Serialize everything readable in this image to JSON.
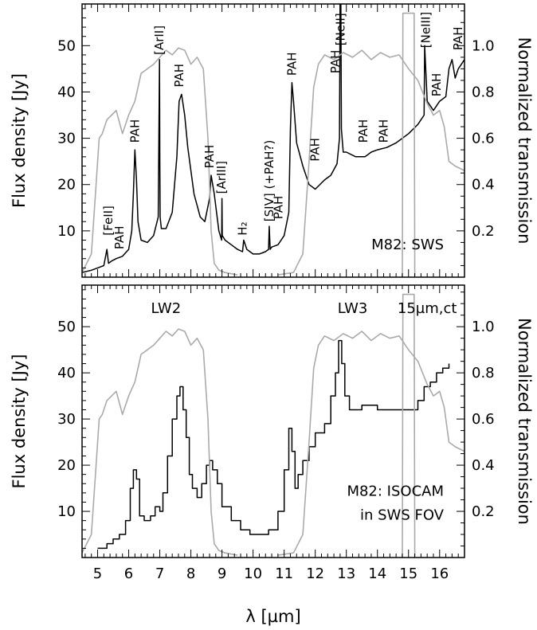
{
  "chart_data": [
    {
      "type": "line",
      "panel_label": "M82: SWS",
      "xlim": [
        4.5,
        16.8
      ],
      "ylim_left": [
        0,
        59
      ],
      "ylim_right": [
        0,
        1.18
      ],
      "x_ticks": [
        5,
        6,
        7,
        8,
        9,
        10,
        11,
        12,
        13,
        14,
        15,
        16
      ],
      "y_left_ticks": [
        10,
        20,
        30,
        40,
        50
      ],
      "y_right_ticks": [
        0.2,
        0.4,
        0.6,
        0.8,
        1.0
      ],
      "ylabel": "Flux density [Jy]",
      "ylabel_right": "Normalized transmission",
      "series": [
        {
          "role": "flux spectrum",
          "axis": "left",
          "color": "#000000",
          "x": [
            4.5,
            4.8,
            5.0,
            5.2,
            5.3,
            5.35,
            5.45,
            5.6,
            5.8,
            6.0,
            6.1,
            6.15,
            6.2,
            6.25,
            6.3,
            6.4,
            6.6,
            6.8,
            6.95,
            6.99,
            7.0,
            7.01,
            7.05,
            7.2,
            7.4,
            7.55,
            7.62,
            7.7,
            7.8,
            7.9,
            8.1,
            8.3,
            8.45,
            8.6,
            8.65,
            8.75,
            8.9,
            8.99,
            9.0,
            9.01,
            9.1,
            9.3,
            9.5,
            9.66,
            9.7,
            9.8,
            10.0,
            10.2,
            10.4,
            10.5,
            10.52,
            10.55,
            10.6,
            10.8,
            11.0,
            11.15,
            11.2,
            11.25,
            11.3,
            11.4,
            11.6,
            11.8,
            12.0,
            12.3,
            12.5,
            12.7,
            12.78,
            12.81,
            12.84,
            12.9,
            13.0,
            13.3,
            13.6,
            13.8,
            14.0,
            14.3,
            14.6,
            14.8,
            15.0,
            15.3,
            15.5,
            15.52,
            15.56,
            15.6,
            15.8,
            16.0,
            16.2,
            16.3,
            16.4,
            16.5,
            16.6,
            16.8
          ],
          "y": [
            1,
            1.5,
            2,
            2.5,
            6,
            3,
            3.5,
            4,
            4.5,
            6,
            10,
            18,
            27.5,
            21,
            12,
            8,
            7.5,
            9,
            13,
            47,
            25,
            13,
            10.5,
            10.5,
            14,
            26,
            38,
            39.5,
            35,
            28,
            18,
            13,
            12,
            17,
            22,
            18,
            10,
            8,
            17,
            9,
            8,
            7,
            6,
            5.5,
            8,
            6,
            5,
            5,
            5.5,
            6,
            11,
            6,
            6.5,
            7,
            9,
            14,
            32,
            42,
            38,
            29,
            24,
            20,
            19,
            21,
            22,
            24.5,
            30,
            80,
            32,
            27,
            27,
            26,
            26,
            27,
            27.5,
            28,
            29,
            30,
            31,
            33,
            35,
            50,
            44,
            38,
            36,
            38,
            39,
            45,
            47,
            43,
            45,
            47
          ]
        },
        {
          "role": "filter transmission LW2",
          "axis": "right",
          "color": "#aaaaaa",
          "x": [
            4.5,
            4.8,
            4.95,
            5.05,
            5.15,
            5.3,
            5.45,
            5.6,
            5.8,
            6.0,
            6.2,
            6.4,
            6.6,
            6.8,
            7.0,
            7.2,
            7.4,
            7.6,
            7.8,
            8.0,
            8.2,
            8.4,
            8.55,
            8.65,
            8.75,
            8.9,
            9.1,
            9.5
          ],
          "y": [
            0.02,
            0.1,
            0.4,
            0.6,
            0.62,
            0.68,
            0.7,
            0.72,
            0.62,
            0.7,
            0.76,
            0.88,
            0.9,
            0.92,
            0.95,
            0.98,
            0.96,
            0.99,
            0.98,
            0.92,
            0.95,
            0.9,
            0.6,
            0.2,
            0.06,
            0.03,
            0.02,
            0.01
          ]
        },
        {
          "role": "filter transmission LW3",
          "axis": "right",
          "color": "#aaaaaa",
          "x": [
            10.8,
            11.3,
            11.6,
            11.8,
            11.95,
            12.1,
            12.3,
            12.6,
            12.9,
            13.2,
            13.5,
            13.8,
            14.1,
            14.4,
            14.7,
            15.0,
            15.3,
            15.6,
            15.8,
            16.0,
            16.15,
            16.3,
            16.5,
            16.8
          ],
          "y": [
            0.01,
            0.02,
            0.1,
            0.5,
            0.82,
            0.92,
            0.96,
            0.94,
            0.97,
            0.95,
            0.98,
            0.94,
            0.97,
            0.95,
            0.96,
            0.9,
            0.85,
            0.75,
            0.7,
            0.72,
            0.65,
            0.5,
            0.48,
            0.46
          ]
        },
        {
          "role": "filter transmission 15µm ct",
          "axis": "right",
          "color": "#aaaaaa",
          "x": [
            14.8,
            14.82,
            15.18,
            15.2
          ],
          "y": [
            0,
            1.14,
            1.14,
            0
          ]
        }
      ],
      "annotations": [
        {
          "text": "[FeII]",
          "x": 5.35,
          "rotate": true,
          "boxed": true,
          "at_flux": 9
        },
        {
          "text": "PAH",
          "x": 5.7,
          "rotate": true,
          "at_flux": 6
        },
        {
          "text": "PAH",
          "x": 6.2,
          "rotate": true,
          "at_flux": 29
        },
        {
          "text": "[ArII]",
          "x": 6.98,
          "rotate": true,
          "boxed": true,
          "at_flux": 48
        },
        {
          "text": "PAH",
          "x": 7.62,
          "rotate": true,
          "at_flux": 41
        },
        {
          "text": "PAH",
          "x": 8.6,
          "rotate": true,
          "at_flux": 23.5
        },
        {
          "text": "[ArIII]",
          "x": 8.99,
          "rotate": true,
          "boxed": true,
          "at_flux": 18
        },
        {
          "text": "H₂",
          "x": 9.66,
          "rotate": true,
          "at_flux": 9
        },
        {
          "text": "[SIV] (+PAH?)",
          "x": 10.52,
          "rotate": true,
          "boxed": true,
          "at_flux": 12
        },
        {
          "text": "PAH",
          "x": 10.82,
          "rotate": true,
          "at_flux": 12.5
        },
        {
          "text": "PAH",
          "x": 11.25,
          "rotate": true,
          "at_flux": 43.5
        },
        {
          "text": "PAH",
          "x": 12.0,
          "rotate": true,
          "at_flux": 25
        },
        {
          "text": "PAH",
          "x": 12.65,
          "rotate": true,
          "at_flux": 44
        },
        {
          "text": "[NeII]",
          "x": 12.81,
          "rotate": true,
          "boxed": true,
          "at_flux": 50
        },
        {
          "text": "PAH",
          "x": 13.55,
          "rotate": true,
          "at_flux": 29
        },
        {
          "text": "PAH",
          "x": 14.2,
          "rotate": true,
          "at_flux": 29
        },
        {
          "text": "[NeIII]",
          "x": 15.56,
          "rotate": true,
          "boxed": true,
          "at_flux": 49.5
        },
        {
          "text": "PAH",
          "x": 15.9,
          "rotate": true,
          "at_flux": 39
        },
        {
          "text": "PAH",
          "x": 16.6,
          "rotate": true,
          "at_flux": 49
        }
      ]
    },
    {
      "type": "line",
      "panel_label_lines": [
        "M82: ISOCAM",
        "in SWS FOV"
      ],
      "top_labels": [
        {
          "text": "LW2",
          "x": 7.2
        },
        {
          "text": "LW3",
          "x": 13.2
        },
        {
          "text": "15µm,ct",
          "x": 15.6
        }
      ],
      "xlim": [
        4.5,
        16.8
      ],
      "ylim_left": [
        0,
        59
      ],
      "ylim_right": [
        0,
        1.18
      ],
      "x_ticks": [
        5,
        6,
        7,
        8,
        9,
        10,
        11,
        12,
        13,
        14,
        15,
        16
      ],
      "y_left_ticks": [
        10,
        20,
        30,
        40,
        50
      ],
      "y_right_ticks": [
        0.2,
        0.4,
        0.6,
        0.8,
        1.0
      ],
      "xlabel": "λ [µm]",
      "ylabel": "Flux density [Jy]",
      "ylabel_right": "Normalized transmission",
      "series": [
        {
          "role": "ISOCAM flux (stepped)",
          "axis": "left",
          "color": "#000000",
          "x": [
            5.0,
            5.3,
            5.5,
            5.7,
            5.9,
            6.05,
            6.15,
            6.25,
            6.35,
            6.5,
            6.7,
            6.85,
            7.0,
            7.1,
            7.25,
            7.4,
            7.55,
            7.65,
            7.75,
            7.85,
            7.95,
            8.05,
            8.2,
            8.35,
            8.5,
            8.6,
            8.7,
            8.85,
            9.0,
            9.3,
            9.6,
            9.9,
            10.2,
            10.5,
            10.8,
            11.0,
            11.15,
            11.25,
            11.35,
            11.45,
            11.6,
            11.8,
            12.0,
            12.3,
            12.5,
            12.65,
            12.75,
            12.85,
            12.95,
            13.1,
            13.5,
            14.0,
            14.5,
            15.0,
            15.3,
            15.5,
            15.7,
            15.9,
            16.1,
            16.3
          ],
          "y": [
            2,
            3,
            4,
            5,
            8,
            15,
            19,
            17,
            9,
            8,
            9,
            11,
            10,
            14,
            22,
            30,
            35,
            37,
            32,
            26,
            18,
            15,
            13,
            16,
            20,
            21,
            19,
            16,
            11,
            8,
            6,
            5,
            5,
            6,
            10,
            19,
            28,
            23,
            15,
            18,
            21,
            24,
            27,
            29,
            35,
            40,
            47,
            42,
            35,
            32,
            33,
            32,
            32,
            32,
            34,
            37,
            38,
            40,
            41,
            42
          ]
        },
        {
          "role": "filter transmission LW2",
          "axis": "right",
          "color": "#aaaaaa",
          "x": [
            4.5,
            4.8,
            4.95,
            5.05,
            5.15,
            5.3,
            5.45,
            5.6,
            5.8,
            6.0,
            6.2,
            6.4,
            6.6,
            6.8,
            7.0,
            7.2,
            7.4,
            7.6,
            7.8,
            8.0,
            8.2,
            8.4,
            8.55,
            8.65,
            8.75,
            8.9,
            9.1,
            9.5
          ],
          "y": [
            0.02,
            0.1,
            0.4,
            0.6,
            0.62,
            0.68,
            0.7,
            0.72,
            0.62,
            0.7,
            0.76,
            0.88,
            0.9,
            0.92,
            0.95,
            0.98,
            0.96,
            0.99,
            0.98,
            0.92,
            0.95,
            0.9,
            0.6,
            0.2,
            0.06,
            0.03,
            0.02,
            0.01
          ]
        },
        {
          "role": "filter transmission LW3",
          "axis": "right",
          "color": "#aaaaaa",
          "x": [
            10.8,
            11.3,
            11.6,
            11.8,
            11.95,
            12.1,
            12.3,
            12.6,
            12.9,
            13.2,
            13.5,
            13.8,
            14.1,
            14.4,
            14.7,
            15.0,
            15.3,
            15.6,
            15.8,
            16.0,
            16.15,
            16.3,
            16.5,
            16.8
          ],
          "y": [
            0.01,
            0.02,
            0.1,
            0.5,
            0.82,
            0.92,
            0.96,
            0.94,
            0.97,
            0.95,
            0.98,
            0.94,
            0.97,
            0.95,
            0.96,
            0.9,
            0.85,
            0.75,
            0.7,
            0.72,
            0.65,
            0.5,
            0.48,
            0.46
          ]
        },
        {
          "role": "filter transmission 15µm ct",
          "axis": "right",
          "color": "#aaaaaa",
          "x": [
            14.8,
            14.82,
            15.18,
            15.2
          ],
          "y": [
            0,
            1.14,
            1.14,
            0
          ]
        }
      ]
    }
  ]
}
